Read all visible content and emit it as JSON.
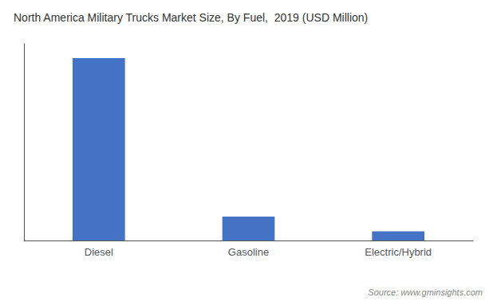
{
  "chart_data": {
    "type": "bar",
    "title": "North America Military Trucks Market Size, By Fuel,  2019 (USD Million)",
    "categories": [
      "Diesel",
      "Gasoline",
      "Electric/Hybrid"
    ],
    "values": [
      3200,
      420,
      160
    ],
    "color": "#4472C4",
    "ylim": [
      0,
      3450
    ],
    "grid": false,
    "tick_labels": "x",
    "annotations": [
      "Source: www.gminsights.com"
    ]
  }
}
